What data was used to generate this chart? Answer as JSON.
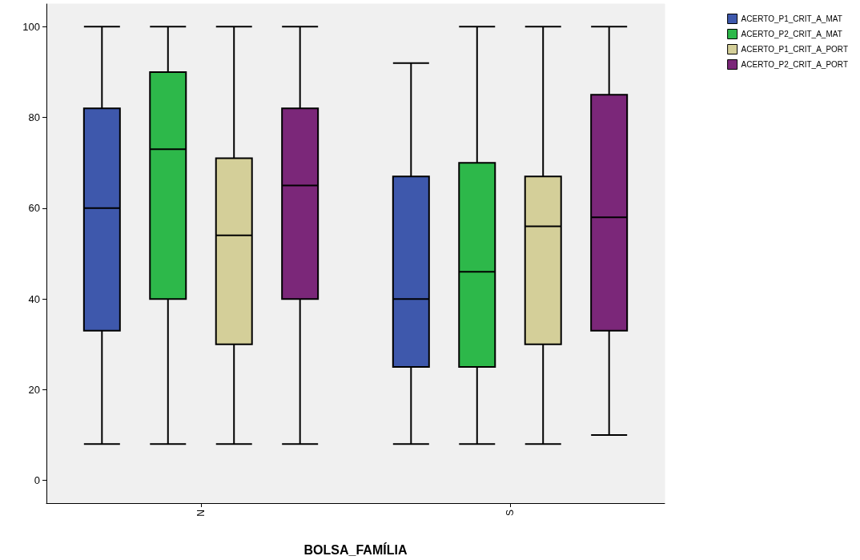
{
  "chart_data": {
    "type": "box",
    "xlabel": "BOLSA_FAMÍLIA",
    "categories": [
      "N",
      "S"
    ],
    "ylim": [
      -5,
      105
    ],
    "yticks": [
      0,
      20,
      40,
      60,
      80,
      100
    ],
    "grid": false,
    "legend": "top right",
    "series": [
      {
        "name": "ACERTO_P1_CRIT_A_MAT",
        "color": "#3e58ac",
        "boxes": [
          {
            "low": 8,
            "q1": 33,
            "median": 60,
            "q3": 82,
            "high": 100
          },
          {
            "low": 8,
            "q1": 25,
            "median": 40,
            "q3": 67,
            "high": 92
          }
        ]
      },
      {
        "name": "ACERTO_P2_CRIT_A_MAT",
        "color": "#2db84a",
        "boxes": [
          {
            "low": 8,
            "q1": 40,
            "median": 73,
            "q3": 90,
            "high": 100
          },
          {
            "low": 8,
            "q1": 25,
            "median": 46,
            "q3": 70,
            "high": 100
          }
        ]
      },
      {
        "name": "ACERTO_P1_CRIT_A_PORT",
        "color": "#d4cf99",
        "boxes": [
          {
            "low": 8,
            "q1": 30,
            "median": 54,
            "q3": 71,
            "high": 100
          },
          {
            "low": 8,
            "q1": 30,
            "median": 56,
            "q3": 67,
            "high": 100
          }
        ]
      },
      {
        "name": "ACERTO_P2_CRIT_A_PORT",
        "color": "#7b2779",
        "boxes": [
          {
            "low": 8,
            "q1": 40,
            "median": 65,
            "q3": 82,
            "high": 100
          },
          {
            "low": 10,
            "q1": 33,
            "median": 58,
            "q3": 85,
            "high": 100
          }
        ]
      }
    ]
  }
}
